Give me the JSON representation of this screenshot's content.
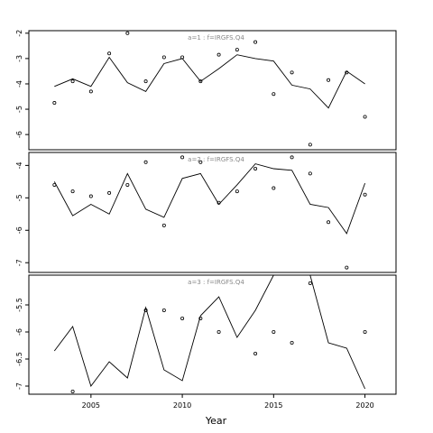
{
  "chart_data": {
    "type": "line",
    "xlabel": "Year",
    "x_ticks": [
      2005,
      2010,
      2015,
      2020
    ],
    "xlim": [
      2001.6,
      2021.7
    ],
    "panels": [
      {
        "label": "a=1 : f=IRGFS.Q4",
        "ylim": [
          -6.6,
          -1.9
        ],
        "y_ticks": [
          -2,
          -3,
          -4,
          -5,
          -6
        ],
        "line": {
          "x": [
            2003,
            2004,
            2005,
            2006,
            2007,
            2008,
            2009,
            2010,
            2011,
            2012,
            2013,
            2014,
            2015,
            2016,
            2017,
            2018,
            2019,
            2020
          ],
          "y": [
            -4.1,
            -3.8,
            -4.1,
            -2.95,
            -3.95,
            -4.3,
            -3.2,
            -3.0,
            -3.9,
            -3.4,
            -2.85,
            -3.0,
            -3.1,
            -4.05,
            -4.2,
            -4.95,
            -3.5,
            -4.0
          ]
        },
        "points": {
          "x": [
            2003,
            2004,
            2005,
            2006,
            2007,
            2008,
            2009,
            2010,
            2011,
            2012,
            2013,
            2014,
            2015,
            2016,
            2017,
            2018,
            2019,
            2020
          ],
          "y": [
            -4.75,
            -3.9,
            -4.3,
            -2.8,
            -2.0,
            -3.9,
            -2.95,
            -2.95,
            -3.9,
            -2.85,
            -2.65,
            -2.35,
            -4.4,
            -3.55,
            -6.4,
            -3.85,
            -3.55,
            -5.3
          ]
        }
      },
      {
        "label": "a=2 : f=IRGFS.Q4",
        "ylim": [
          -7.3,
          -3.6
        ],
        "y_ticks": [
          -4,
          -5,
          -6,
          -7
        ],
        "line": {
          "x": [
            2003,
            2004,
            2005,
            2006,
            2007,
            2008,
            2009,
            2010,
            2011,
            2012,
            2013,
            2014,
            2015,
            2016,
            2017,
            2018,
            2019,
            2020
          ],
          "y": [
            -4.5,
            -5.55,
            -5.2,
            -5.5,
            -4.25,
            -5.35,
            -5.6,
            -4.4,
            -4.25,
            -5.2,
            -4.6,
            -3.95,
            -4.1,
            -4.15,
            -5.2,
            -5.3,
            -6.1,
            -4.55
          ]
        },
        "points": {
          "x": [
            2003,
            2004,
            2005,
            2006,
            2007,
            2008,
            2009,
            2010,
            2011,
            2012,
            2013,
            2014,
            2015,
            2016,
            2017,
            2018,
            2019,
            2020
          ],
          "y": [
            -4.6,
            -4.8,
            -4.95,
            -4.85,
            -4.6,
            -3.9,
            -5.85,
            -3.75,
            -3.9,
            -5.15,
            -4.8,
            -4.1,
            -4.7,
            -3.75,
            -4.25,
            -5.75,
            -7.15,
            -4.9
          ]
        }
      },
      {
        "label": "a=3 : f=IRGFS.Q4",
        "ylim": [
          -7.15,
          -4.95
        ],
        "y_ticks": [
          -5.5,
          -6.0,
          -6.5,
          -7.0
        ],
        "line": {
          "x": [
            2003,
            2004,
            2005,
            2006,
            2007,
            2008,
            2009,
            2010,
            2011,
            2012,
            2013,
            2014,
            2015,
            2016,
            2017,
            2018,
            2019,
            2020
          ],
          "y": [
            -6.35,
            -5.9,
            -7.0,
            -6.55,
            -6.85,
            -5.55,
            -6.7,
            -6.9,
            -5.7,
            -5.35,
            -6.1,
            -5.6,
            -4.95,
            -4.95,
            -4.95,
            -6.2,
            -6.3,
            -7.05
          ]
        },
        "points": {
          "x": [
            2004,
            2008,
            2009,
            2010,
            2011,
            2012,
            2014,
            2015,
            2016,
            2017,
            2020
          ],
          "y": [
            -7.1,
            -5.6,
            -5.6,
            -5.75,
            -5.75,
            -6.0,
            -6.4,
            -6.0,
            -6.2,
            -5.1,
            -6.0
          ]
        }
      }
    ]
  }
}
